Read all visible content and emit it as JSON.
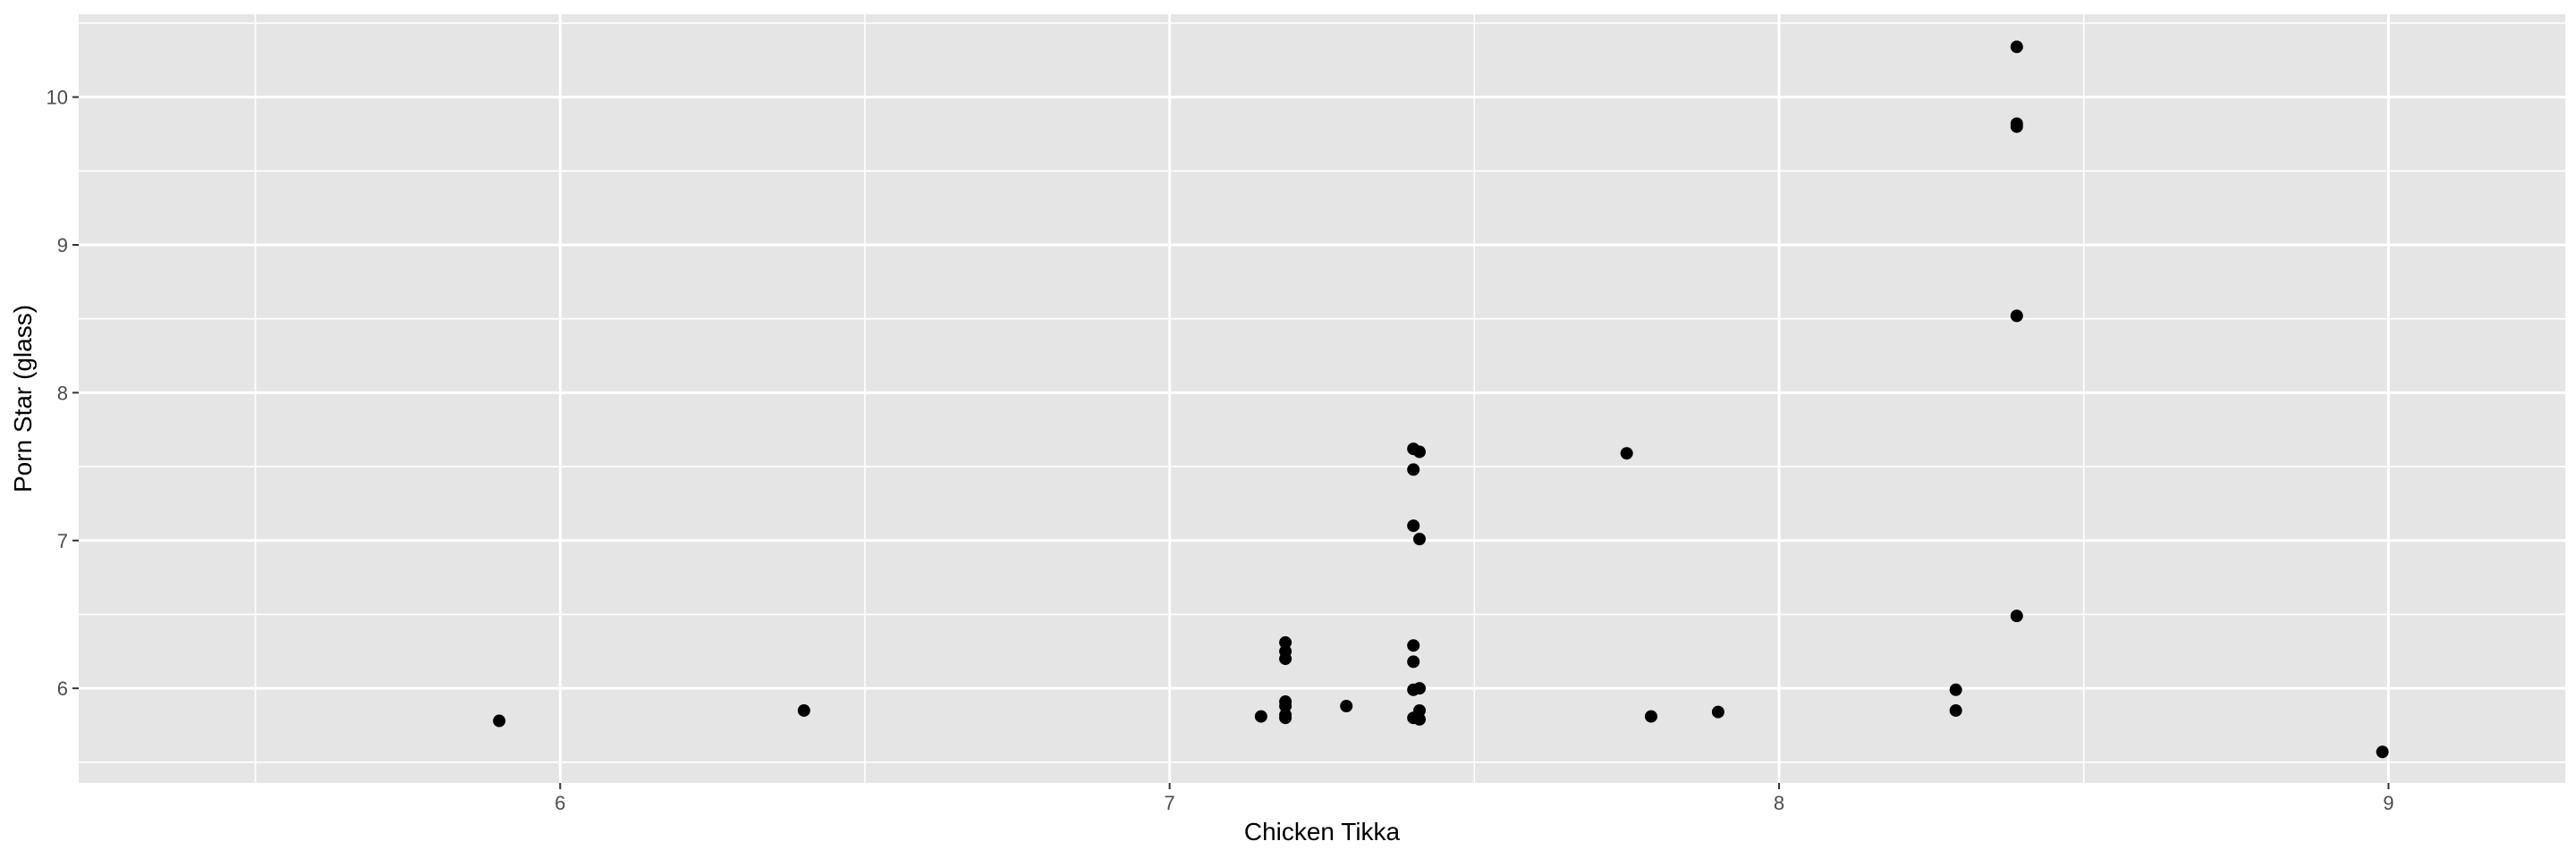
{
  "chart_data": {
    "type": "scatter",
    "title": "",
    "xlabel": "Chicken Tikka",
    "ylabel": "Porn Star (glass)",
    "xlim": [
      5.21,
      9.29
    ],
    "ylim": [
      5.36,
      10.56
    ],
    "x_ticks": [
      6,
      7,
      8,
      9
    ],
    "y_ticks": [
      6,
      7,
      8,
      9,
      10
    ],
    "grid": true,
    "legend": "none",
    "colors": {
      "panel": "#e5e5e5",
      "grid": "#ffffff",
      "point": "#000000",
      "tick_text": "#4d4d4d",
      "title_text": "#000000"
    },
    "points": [
      {
        "x": 5.9,
        "y": 5.78
      },
      {
        "x": 6.4,
        "y": 5.85
      },
      {
        "x": 7.15,
        "y": 5.81
      },
      {
        "x": 7.19,
        "y": 6.31
      },
      {
        "x": 7.19,
        "y": 6.25
      },
      {
        "x": 7.19,
        "y": 6.2
      },
      {
        "x": 7.19,
        "y": 5.91
      },
      {
        "x": 7.19,
        "y": 5.88
      },
      {
        "x": 7.19,
        "y": 5.82
      },
      {
        "x": 7.19,
        "y": 5.8
      },
      {
        "x": 7.29,
        "y": 5.88
      },
      {
        "x": 7.4,
        "y": 7.62
      },
      {
        "x": 7.41,
        "y": 7.6
      },
      {
        "x": 7.4,
        "y": 7.48
      },
      {
        "x": 7.4,
        "y": 7.1
      },
      {
        "x": 7.41,
        "y": 7.01
      },
      {
        "x": 7.4,
        "y": 6.29
      },
      {
        "x": 7.4,
        "y": 6.18
      },
      {
        "x": 7.4,
        "y": 5.99
      },
      {
        "x": 7.41,
        "y": 6.0
      },
      {
        "x": 7.41,
        "y": 5.85
      },
      {
        "x": 7.4,
        "y": 5.8
      },
      {
        "x": 7.41,
        "y": 5.79
      },
      {
        "x": 7.75,
        "y": 7.59
      },
      {
        "x": 7.79,
        "y": 5.81
      },
      {
        "x": 7.9,
        "y": 5.84
      },
      {
        "x": 8.29,
        "y": 5.99
      },
      {
        "x": 8.29,
        "y": 5.85
      },
      {
        "x": 8.39,
        "y": 10.34
      },
      {
        "x": 8.39,
        "y": 9.82
      },
      {
        "x": 8.39,
        "y": 9.8
      },
      {
        "x": 8.39,
        "y": 8.52
      },
      {
        "x": 8.39,
        "y": 6.49
      },
      {
        "x": 8.99,
        "y": 5.57
      }
    ]
  }
}
